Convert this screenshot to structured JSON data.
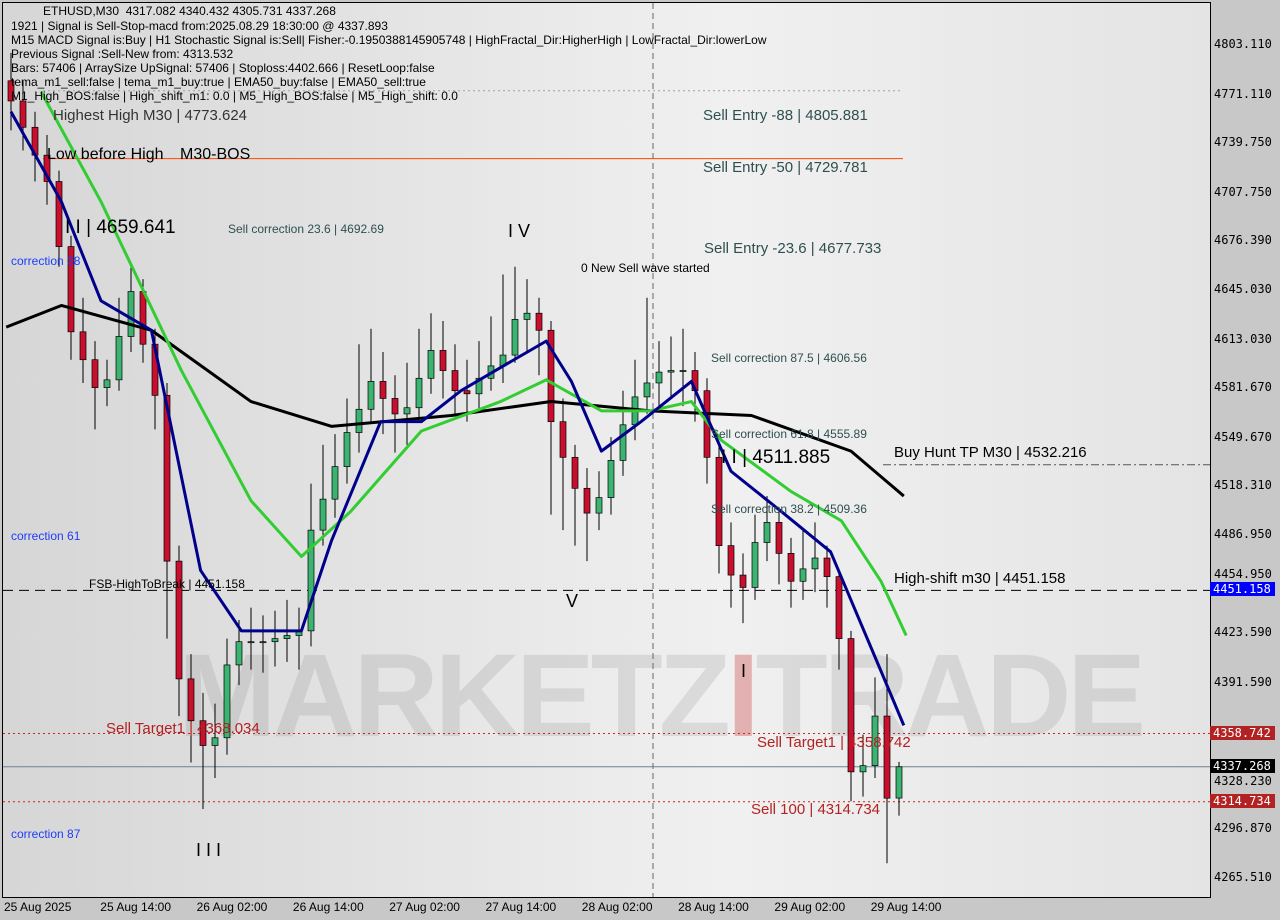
{
  "chart_data": {
    "type": "candlestick",
    "symbol": "ETHUSD,M30",
    "header_ohlc": "4317.082 4340.432 4305.731 4337.268",
    "ylim": [
      4250,
      4835
    ],
    "y_ticks": [
      "4803.110",
      "4771.110",
      "4739.750",
      "4707.750",
      "4676.390",
      "4645.030",
      "4613.030",
      "4581.670",
      "4549.670",
      "4518.310",
      "4486.950",
      "4454.950",
      "4423.590",
      "4391.590",
      "4328.230",
      "4296.870",
      "4265.510"
    ],
    "x_ticks": [
      "25 Aug 2025",
      "25 Aug 14:00",
      "26 Aug 02:00",
      "26 Aug 14:00",
      "27 Aug 02:00",
      "27 Aug 14:00",
      "28 Aug 02:00",
      "28 Aug 14:00",
      "29 Aug 02:00",
      "29 Aug 14:00"
    ],
    "ohlc": [
      [
        4780,
        4798,
        4748,
        4767
      ],
      [
        4767,
        4780,
        4735,
        4750
      ],
      [
        4750,
        4760,
        4715,
        4732
      ],
      [
        4732,
        4745,
        4700,
        4715
      ],
      [
        4715,
        4722,
        4660,
        4673
      ],
      [
        4673,
        4680,
        4600,
        4618
      ],
      [
        4618,
        4640,
        4585,
        4600
      ],
      [
        4600,
        4612,
        4555,
        4582
      ],
      [
        4582,
        4600,
        4570,
        4587
      ],
      [
        4587,
        4640,
        4580,
        4615
      ],
      [
        4615,
        4662,
        4605,
        4644
      ],
      [
        4644,
        4652,
        4598,
        4610
      ],
      [
        4610,
        4620,
        4555,
        4577
      ],
      [
        4577,
        4585,
        4420,
        4470
      ],
      [
        4470,
        4480,
        4370,
        4394
      ],
      [
        4394,
        4410,
        4340,
        4367
      ],
      [
        4367,
        4385,
        4310,
        4351
      ],
      [
        4351,
        4378,
        4330,
        4356
      ],
      [
        4356,
        4420,
        4345,
        4403
      ],
      [
        4403,
        4432,
        4390,
        4418
      ],
      [
        4418,
        4440,
        4400,
        4418
      ],
      [
        4418,
        4435,
        4398,
        4418
      ],
      [
        4418,
        4438,
        4402,
        4420
      ],
      [
        4420,
        4445,
        4405,
        4422
      ],
      [
        4422,
        4440,
        4400,
        4425
      ],
      [
        4425,
        4520,
        4415,
        4490
      ],
      [
        4490,
        4545,
        4480,
        4510
      ],
      [
        4510,
        4552,
        4498,
        4531
      ],
      [
        4531,
        4575,
        4520,
        4553
      ],
      [
        4553,
        4610,
        4540,
        4568
      ],
      [
        4568,
        4620,
        4560,
        4586
      ],
      [
        4586,
        4605,
        4552,
        4575
      ],
      [
        4575,
        4590,
        4540,
        4565
      ],
      [
        4565,
        4598,
        4545,
        4569
      ],
      [
        4569,
        4620,
        4560,
        4588
      ],
      [
        4588,
        4630,
        4578,
        4606
      ],
      [
        4606,
        4625,
        4575,
        4593
      ],
      [
        4593,
        4610,
        4565,
        4580
      ],
      [
        4580,
        4600,
        4560,
        4578
      ],
      [
        4578,
        4612,
        4568,
        4588
      ],
      [
        4588,
        4628,
        4580,
        4596
      ],
      [
        4596,
        4655,
        4585,
        4603
      ],
      [
        4603,
        4660,
        4598,
        4626
      ],
      [
        4626,
        4652,
        4605,
        4630
      ],
      [
        4630,
        4640,
        4590,
        4619
      ],
      [
        4619,
        4625,
        4500,
        4560
      ],
      [
        4560,
        4575,
        4490,
        4537
      ],
      [
        4537,
        4545,
        4480,
        4517
      ],
      [
        4517,
        4530,
        4470,
        4501
      ],
      [
        4501,
        4528,
        4490,
        4511
      ],
      [
        4511,
        4550,
        4500,
        4535
      ],
      [
        4535,
        4580,
        4525,
        4558
      ],
      [
        4558,
        4600,
        4548,
        4576
      ],
      [
        4576,
        4640,
        4565,
        4585
      ],
      [
        4585,
        4612,
        4570,
        4592
      ],
      [
        4592,
        4615,
        4575,
        4593
      ],
      [
        4593,
        4620,
        4570,
        4593
      ],
      [
        4593,
        4605,
        4560,
        4580
      ],
      [
        4580,
        4588,
        4520,
        4537
      ],
      [
        4537,
        4545,
        4462,
        4480
      ],
      [
        4480,
        4495,
        4440,
        4461
      ],
      [
        4461,
        4475,
        4430,
        4453
      ],
      [
        4453,
        4500,
        4445,
        4482
      ],
      [
        4482,
        4512,
        4470,
        4495
      ],
      [
        4495,
        4505,
        4455,
        4475
      ],
      [
        4475,
        4485,
        4440,
        4457
      ],
      [
        4457,
        4490,
        4445,
        4465
      ],
      [
        4465,
        4495,
        4450,
        4472
      ],
      [
        4472,
        4480,
        4440,
        4460
      ],
      [
        4460,
        4465,
        4400,
        4420
      ],
      [
        4420,
        4425,
        4315,
        4334
      ],
      [
        4334,
        4358,
        4318,
        4338
      ],
      [
        4338,
        4395,
        4330,
        4370
      ],
      [
        4370,
        4410,
        4275,
        4317
      ],
      [
        4317.082,
        4340.432,
        4305.731,
        4337.268
      ]
    ],
    "lines": [
      {
        "color": "#000000",
        "points": [
          [
            -0.4,
            4621
          ],
          [
            4.2,
            4635
          ],
          [
            11.7,
            4619
          ],
          [
            20,
            4573
          ],
          [
            26.7,
            4557
          ],
          [
            36.7,
            4564
          ],
          [
            45,
            4573
          ],
          [
            53.3,
            4567
          ],
          [
            61.7,
            4564
          ],
          [
            70,
            4541
          ],
          [
            74.4,
            4512
          ]
        ]
      },
      {
        "color": "#32cd32",
        "points": [
          [
            2.5,
            4773
          ],
          [
            7.5,
            4702
          ],
          [
            14.2,
            4593
          ],
          [
            20,
            4509
          ],
          [
            24.2,
            4473
          ],
          [
            28.3,
            4502
          ],
          [
            34.2,
            4554
          ],
          [
            40.8,
            4573
          ],
          [
            44.6,
            4587
          ],
          [
            49.2,
            4567
          ],
          [
            53.3,
            4567
          ],
          [
            56.7,
            4573
          ],
          [
            59.2,
            4548
          ],
          [
            65,
            4515
          ],
          [
            69.2,
            4496
          ],
          [
            72.5,
            4457
          ],
          [
            74.6,
            4422
          ]
        ]
      },
      {
        "color": "#00008b",
        "points": [
          [
            0,
            4760
          ],
          [
            4.2,
            4702
          ],
          [
            7.5,
            4638
          ],
          [
            11.7,
            4619
          ],
          [
            15.8,
            4464
          ],
          [
            19.2,
            4425
          ],
          [
            24.2,
            4425
          ],
          [
            26.7,
            4483
          ],
          [
            30.8,
            4560
          ],
          [
            34.2,
            4560
          ],
          [
            37.5,
            4580
          ],
          [
            41.7,
            4599
          ],
          [
            44.6,
            4612
          ],
          [
            46.7,
            4586
          ],
          [
            49.2,
            4541
          ],
          [
            52.5,
            4560
          ],
          [
            56.7,
            4586
          ],
          [
            60,
            4528
          ],
          [
            64.2,
            4502
          ],
          [
            68.3,
            4476
          ],
          [
            72.5,
            4399
          ],
          [
            74.4,
            4364
          ]
        ]
      }
    ],
    "levels": [
      {
        "price": 4729.781,
        "color": "#ff4500",
        "style": "solid"
      },
      {
        "price": 4773.6,
        "color": "#a0a0a0",
        "style": "dotted"
      },
      {
        "price": 4532.216,
        "color": "#555555",
        "style": "dashdot"
      },
      {
        "price": 4451.158,
        "color": "#000000",
        "style": "dashed"
      },
      {
        "price": 4358.742,
        "color": "#cc2222",
        "style": "dotted"
      },
      {
        "price": 4337.268,
        "color": "#708090",
        "style": "solid"
      },
      {
        "price": 4314.734,
        "color": "#cc2222",
        "style": "dotted"
      }
    ],
    "price_tags": [
      {
        "value": "4451.158",
        "color": "#0000ff"
      },
      {
        "value": "4358.742",
        "color": "#b22222"
      },
      {
        "value": "4337.268",
        "color": "#000000"
      },
      {
        "value": "4314.734",
        "color": "#b22222"
      }
    ]
  },
  "info": {
    "line1": "1921 | Signal is Sell-Stop-macd from:2025.08.29 18:30:00 @ 4337.893",
    "line2": "M15 MACD Signal is:Buy | H1 Stochastic Signal is:Sell| Fisher:-0.1950388145905748 | HighFractal_Dir:HigherHigh | LowFractal_Dir:lowerLow",
    "line3": "Previous Signal :Sell-New from: 4313.532",
    "line4": "Bars: 57406 | ArraySize UpSignal: 57406 | Stoploss:4402.666 | ResetLoop:false",
    "line5": "tema_m1_sell:false | tema_m1_buy:true | EMA50_buy:false | EMA50_sell:true",
    "line6": "M1_High_BOS:false | High_shift_m1: 0.0 | M5_High_BOS:false | M5_High_shift: 0.0"
  },
  "labels": {
    "highest_high": "Highest High   M30 | 4773.624",
    "sell_entry_88": "Sell Entry -88 | 4805.881",
    "sell_entry_50": "Sell Entry -50 | 4729.781",
    "sell_entry_236": "Sell Entry -23.6 | 4677.733",
    "low_before_high": "Low before High",
    "m30_bos": "M30-BOS",
    "sell_corr_236": "Sell correction 23.6 | 4692.69",
    "ii_left": "I I | 4659.641",
    "correction_38": "correction 38",
    "correction_61": "correction 61",
    "correction_87": "correction 87",
    "new_sell_wave": "0 New Sell wave started",
    "sell_corr_875": "Sell correction 87.5 | 4606.56",
    "sell_corr_618": "Sell correction 61.8 | 4555.89",
    "sell_corr_382": "Sell correction 38.2 | 4509.36",
    "ii_right": "I I | 4511.885",
    "buy_hunt": "Buy Hunt TP M30 | 4532.216",
    "high_shift": "High-shift m30 | 4451.158",
    "fsb": "FSB-HighToBreak | 4451.158",
    "sell_target_left": "Sell Target1 | 4368.034",
    "sell_target_right": "Sell Target1 | 4358.742",
    "sell_100": "Sell 100 | 4314.734",
    "wave_iv": "I V",
    "wave_v": "V",
    "wave_iii": "I I I",
    "wave_i": "I"
  },
  "watermark": {
    "part1": "MARKETZ",
    "part2": "I",
    "part3": "TRADE"
  }
}
